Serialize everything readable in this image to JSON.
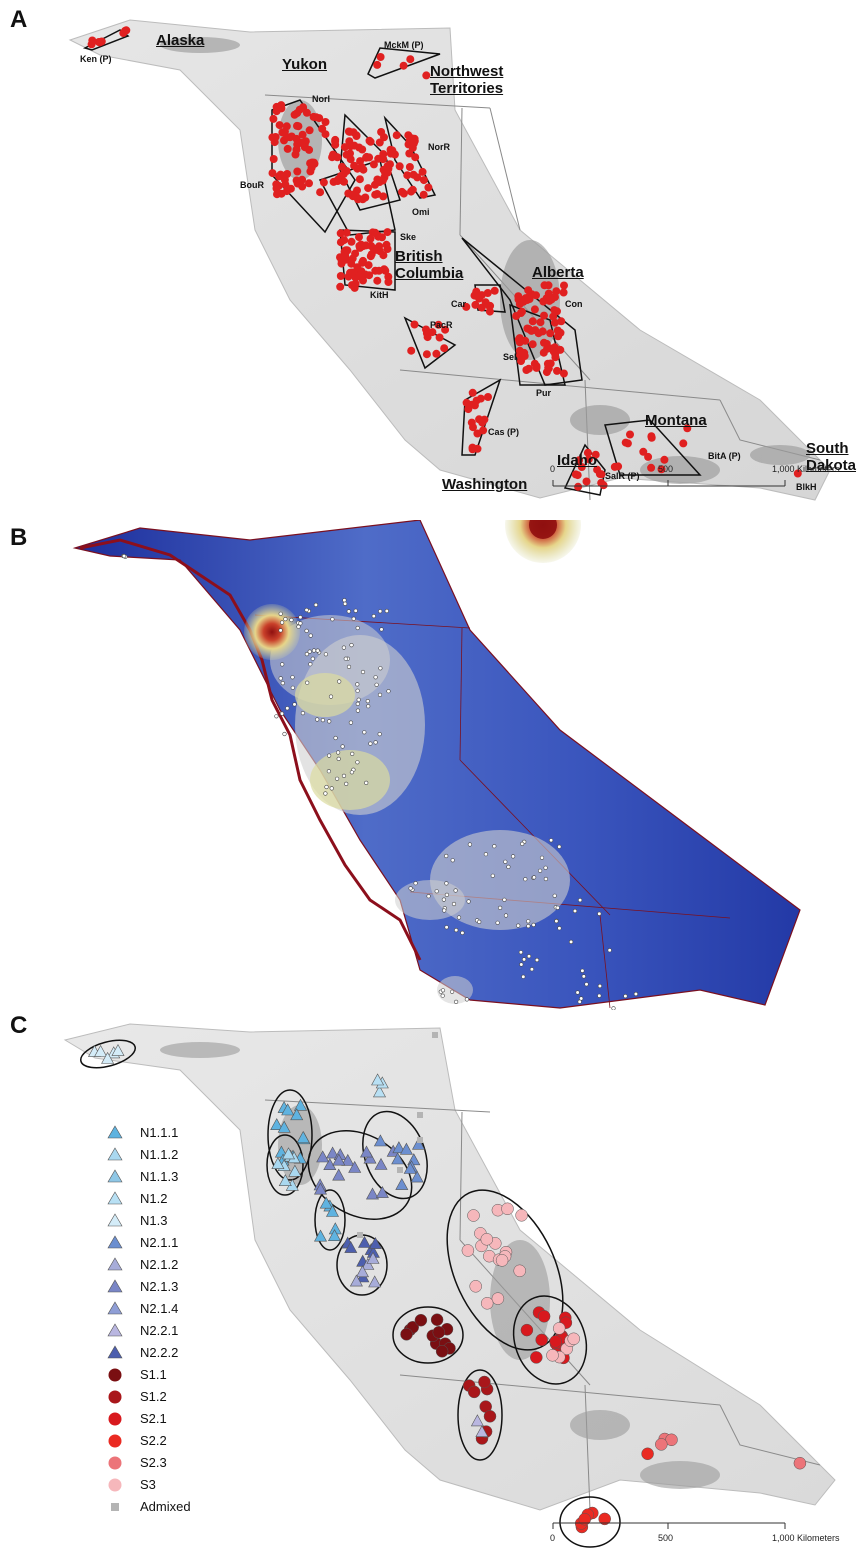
{
  "panels": {
    "a": {
      "letter": "A",
      "regions": {
        "alaska": "Alaska",
        "yukon": "Yukon",
        "nwt": "Northwest Territories",
        "bc": "British Columbia",
        "alberta": "Alberta",
        "montana": "Montana",
        "idaho": "Idaho",
        "washington": "Washington",
        "south_dakota": "South Dakota"
      },
      "sites": {
        "ken": "Ken (P)",
        "mckm": "MckM (P)",
        "nori": "NorI",
        "norr": "NorR",
        "bour": "BouR",
        "omi": "Omi",
        "ske": "Ske",
        "kith": "KitH",
        "car": "Car",
        "con": "Con",
        "pacr": "PacR",
        "sel": "Sel",
        "pur": "Pur",
        "cas": "Cas (P)",
        "bita": "BitA (P)",
        "salr": "SalR (P)",
        "blkh": "BlkH"
      },
      "scale": {
        "ticks": [
          "0",
          "500",
          "1,000 Kilometers"
        ]
      }
    },
    "b": {
      "letter": "B"
    },
    "c": {
      "letter": "C",
      "scale": {
        "ticks": [
          "0",
          "500",
          "1,000 Kilometers"
        ]
      },
      "legend": [
        {
          "label": "N1.1.1",
          "shape": "triangle",
          "color": "#5fb3e0"
        },
        {
          "label": "N1.1.2",
          "shape": "triangle",
          "color": "#a9d8f0"
        },
        {
          "label": "N1.1.3",
          "shape": "triangle",
          "color": "#8fc7e6"
        },
        {
          "label": "N1.2",
          "shape": "triangle",
          "color": "#b8e0f4"
        },
        {
          "label": "N1.3",
          "shape": "triangle",
          "color": "#d4ecf8"
        },
        {
          "label": "N2.1.1",
          "shape": "triangle",
          "color": "#6c8fd0"
        },
        {
          "label": "N2.1.2",
          "shape": "triangle",
          "color": "#a7acd9"
        },
        {
          "label": "N2.1.3",
          "shape": "triangle",
          "color": "#7a86c6"
        },
        {
          "label": "N2.1.4",
          "shape": "triangle",
          "color": "#8f9ed6"
        },
        {
          "label": "N2.2.1",
          "shape": "triangle",
          "color": "#b9b6e0"
        },
        {
          "label": "N2.2.2",
          "shape": "triangle",
          "color": "#4d5fae"
        },
        {
          "label": "S1.1",
          "shape": "circle",
          "color": "#7a0f12"
        },
        {
          "label": "S1.2",
          "shape": "circle",
          "color": "#a9161a"
        },
        {
          "label": "S2.1",
          "shape": "circle",
          "color": "#d8191e"
        },
        {
          "label": "S2.2",
          "shape": "circle",
          "color": "#ea2a22"
        },
        {
          "label": "S2.3",
          "shape": "circle",
          "color": "#ec7479"
        },
        {
          "label": "S3",
          "shape": "circle",
          "color": "#f6b7bb"
        },
        {
          "label": "Admixed",
          "shape": "square",
          "color": "#b4b4b4"
        }
      ]
    }
  }
}
